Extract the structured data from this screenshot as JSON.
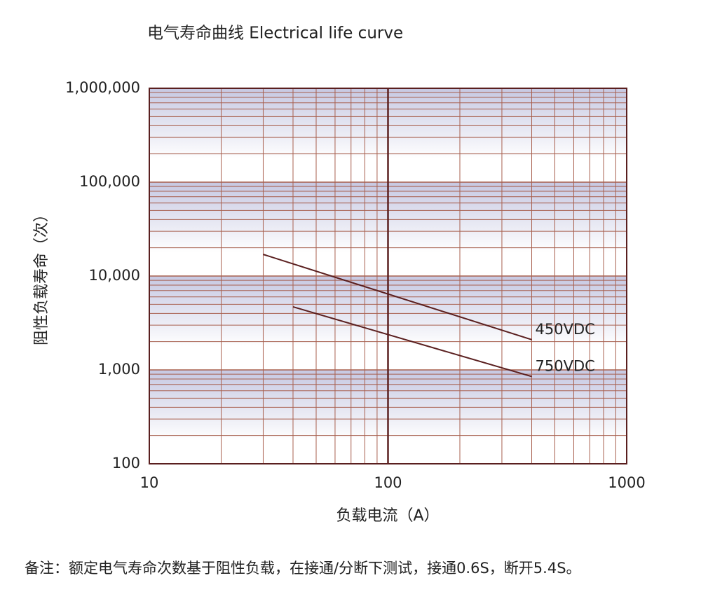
{
  "chart_data": {
    "type": "line",
    "title": "电气寿命曲线   Electrical life curve",
    "x_label": "负载电流（A）",
    "y_label": "阻性负载寿命（次）",
    "note": "备注：额定电气寿命次数基于阻性负载，在接通/分断下测试，接通0.6S，断开5.4S。",
    "x_log": true,
    "y_log": true,
    "grid": true,
    "xlim": [
      10,
      1000
    ],
    "xticks": [
      10,
      100,
      1000
    ],
    "ylim": [
      100,
      1000000
    ],
    "yticks": [
      100,
      {
        "value": 1000,
        "label": "1,000"
      },
      {
        "value": 10000,
        "label": "10,000"
      },
      {
        "value": 100000,
        "label": "100,000"
      },
      {
        "value": 1000000,
        "label": "1,000,000"
      }
    ],
    "grid_color": "#a8604f",
    "band_color": "#c6c8e2",
    "series": [
      {
        "name": "450VDC",
        "color": "#5a1f1f",
        "x": [
          30,
          400
        ],
        "values": [
          17000,
          2100
        ]
      },
      {
        "name": "750VDC",
        "color": "#5a1f1f",
        "x": [
          40,
          400
        ],
        "values": [
          4700,
          850
        ]
      }
    ]
  }
}
